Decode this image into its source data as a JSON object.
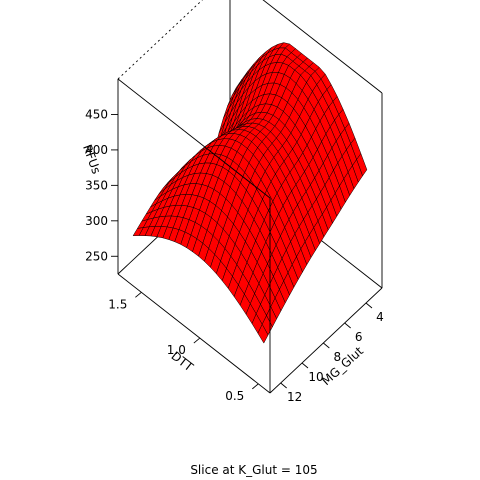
{
  "chart_data": {
    "type": "surface",
    "title": "Slice at K_Glut = 105",
    "xlabel": "DTT",
    "ylabel": "MG_Glut",
    "zlabel": "RFUs",
    "x_ticks": [
      0.5,
      1.0,
      1.5
    ],
    "x_tick_labels": [
      "0.5",
      "1.0",
      "1.5"
    ],
    "y_ticks": [
      4,
      6,
      8,
      10,
      12
    ],
    "y_tick_labels": [
      "4",
      "6",
      "8",
      "10",
      "12"
    ],
    "z_ticks": [
      250,
      300,
      350,
      400,
      450
    ],
    "z_tick_labels": [
      "250",
      "300",
      "350",
      "400",
      "450"
    ],
    "xlim": [
      0.4,
      1.7
    ],
    "ylim": [
      2.5,
      13.0
    ],
    "zlim": [
      225,
      500
    ],
    "surface_color": "#ff0000",
    "mesh_color": "#000000",
    "model": {
      "description_of_shape": "saddle: rises toward low DTT and toward high/low MG_Glut",
      "z_corners": {
        "dtt_low_mg_low": 400,
        "dtt_low_mg_high": 300,
        "dtt_high_mg_low": 370,
        "dtt_high_mg_high": 310
      },
      "ridge_peak": 478
    },
    "grid": false,
    "box": true
  }
}
